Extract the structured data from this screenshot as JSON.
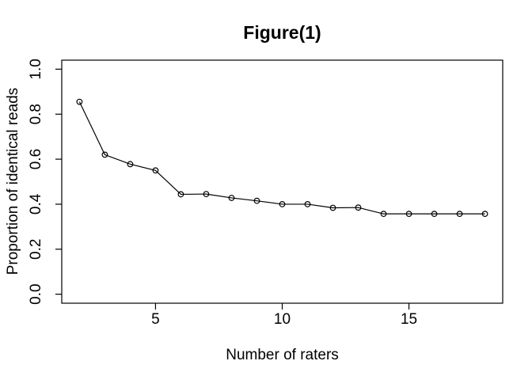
{
  "chart_data": {
    "type": "line",
    "title": "Figure(1)",
    "xlabel": "Number of raters",
    "ylabel": "Proportion of identical reads",
    "series": [
      {
        "name": "proportion-of-identical-reads",
        "x": [
          2,
          3,
          4,
          5,
          6,
          7,
          8,
          9,
          10,
          11,
          12,
          13,
          14,
          15,
          16,
          17,
          18
        ],
        "y": [
          0.855,
          0.62,
          0.578,
          0.55,
          0.444,
          0.445,
          0.428,
          0.415,
          0.4,
          0.4,
          0.384,
          0.385,
          0.357,
          0.357,
          0.357,
          0.357,
          0.357
        ]
      }
    ],
    "xticks": [
      5,
      10,
      15
    ],
    "yticks": [
      0.0,
      0.2,
      0.4,
      0.6,
      0.8,
      1.0
    ],
    "xlim": [
      1.3,
      18.7
    ],
    "ylim": [
      -0.04,
      1.04
    ],
    "grid": false,
    "legend": null,
    "marker": "open-circle",
    "line_color": "#000000",
    "marker_color": "#000000",
    "background_color": "#ffffff",
    "text_color": "#000000"
  }
}
